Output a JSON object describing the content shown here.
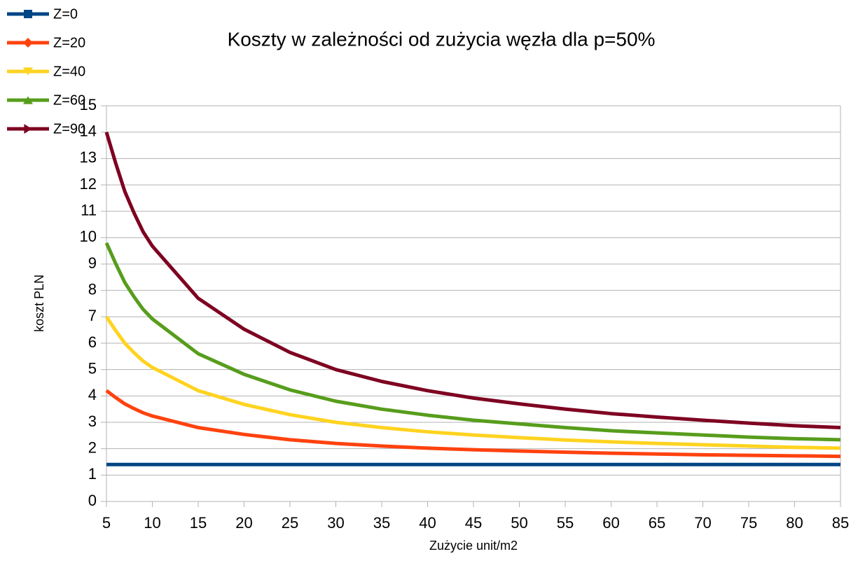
{
  "chart_data": {
    "type": "line",
    "title": "Koszty w zależności od zużycia węzła dla p=50%",
    "x_label": "Zużycie unit/m2",
    "y_label": "koszt PLN",
    "x": [
      5,
      6,
      7,
      8,
      9,
      10,
      15,
      20,
      25,
      30,
      35,
      40,
      45,
      50,
      55,
      60,
      65,
      70,
      75,
      80,
      85
    ],
    "series": [
      {
        "name": "Z=0",
        "color": "#004586",
        "marker": "square",
        "values": [
          1.4,
          1.4,
          1.4,
          1.4,
          1.4,
          1.4,
          1.4,
          1.4,
          1.4,
          1.4,
          1.4,
          1.4,
          1.4,
          1.4,
          1.4,
          1.4,
          1.4,
          1.4,
          1.4,
          1.4,
          1.4
        ]
      },
      {
        "name": "Z=20",
        "color": "#ff420e",
        "marker": "diamond",
        "values": [
          4.2,
          3.94,
          3.7,
          3.52,
          3.36,
          3.24,
          2.8,
          2.54,
          2.34,
          2.2,
          2.1,
          2.02,
          1.96,
          1.91,
          1.87,
          1.83,
          1.8,
          1.77,
          1.75,
          1.73,
          1.71
        ]
      },
      {
        "name": "Z=40",
        "color": "#ffd320",
        "marker": "triangle-down",
        "values": [
          7.0,
          6.48,
          6.0,
          5.64,
          5.32,
          5.08,
          4.2,
          3.68,
          3.29,
          3.0,
          2.8,
          2.64,
          2.52,
          2.42,
          2.33,
          2.26,
          2.2,
          2.15,
          2.1,
          2.05,
          2.02
        ]
      },
      {
        "name": "Z=60",
        "color": "#579d1c",
        "marker": "triangle-up",
        "values": [
          9.8,
          9.02,
          8.3,
          7.76,
          7.28,
          6.92,
          5.6,
          4.82,
          4.23,
          3.8,
          3.5,
          3.27,
          3.08,
          2.94,
          2.8,
          2.68,
          2.6,
          2.52,
          2.44,
          2.38,
          2.34
        ]
      },
      {
        "name": "Z=90",
        "color": "#7e0021",
        "marker": "triangle-right",
        "values": [
          14.0,
          12.83,
          11.75,
          10.94,
          10.22,
          9.68,
          7.7,
          6.53,
          5.65,
          5.0,
          4.55,
          4.2,
          3.92,
          3.7,
          3.5,
          3.33,
          3.2,
          3.08,
          2.97,
          2.87,
          2.8
        ]
      }
    ],
    "xlim": [
      5,
      85
    ],
    "xticks": [
      5,
      10,
      15,
      20,
      25,
      30,
      35,
      40,
      45,
      50,
      55,
      60,
      65,
      70,
      75,
      80,
      85
    ],
    "ylim": [
      0,
      15
    ],
    "yticks": [
      0,
      1,
      2,
      3,
      4,
      5,
      6,
      7,
      8,
      9,
      10,
      11,
      12,
      13,
      14,
      15
    ],
    "grid": true,
    "legend": "top-left"
  }
}
